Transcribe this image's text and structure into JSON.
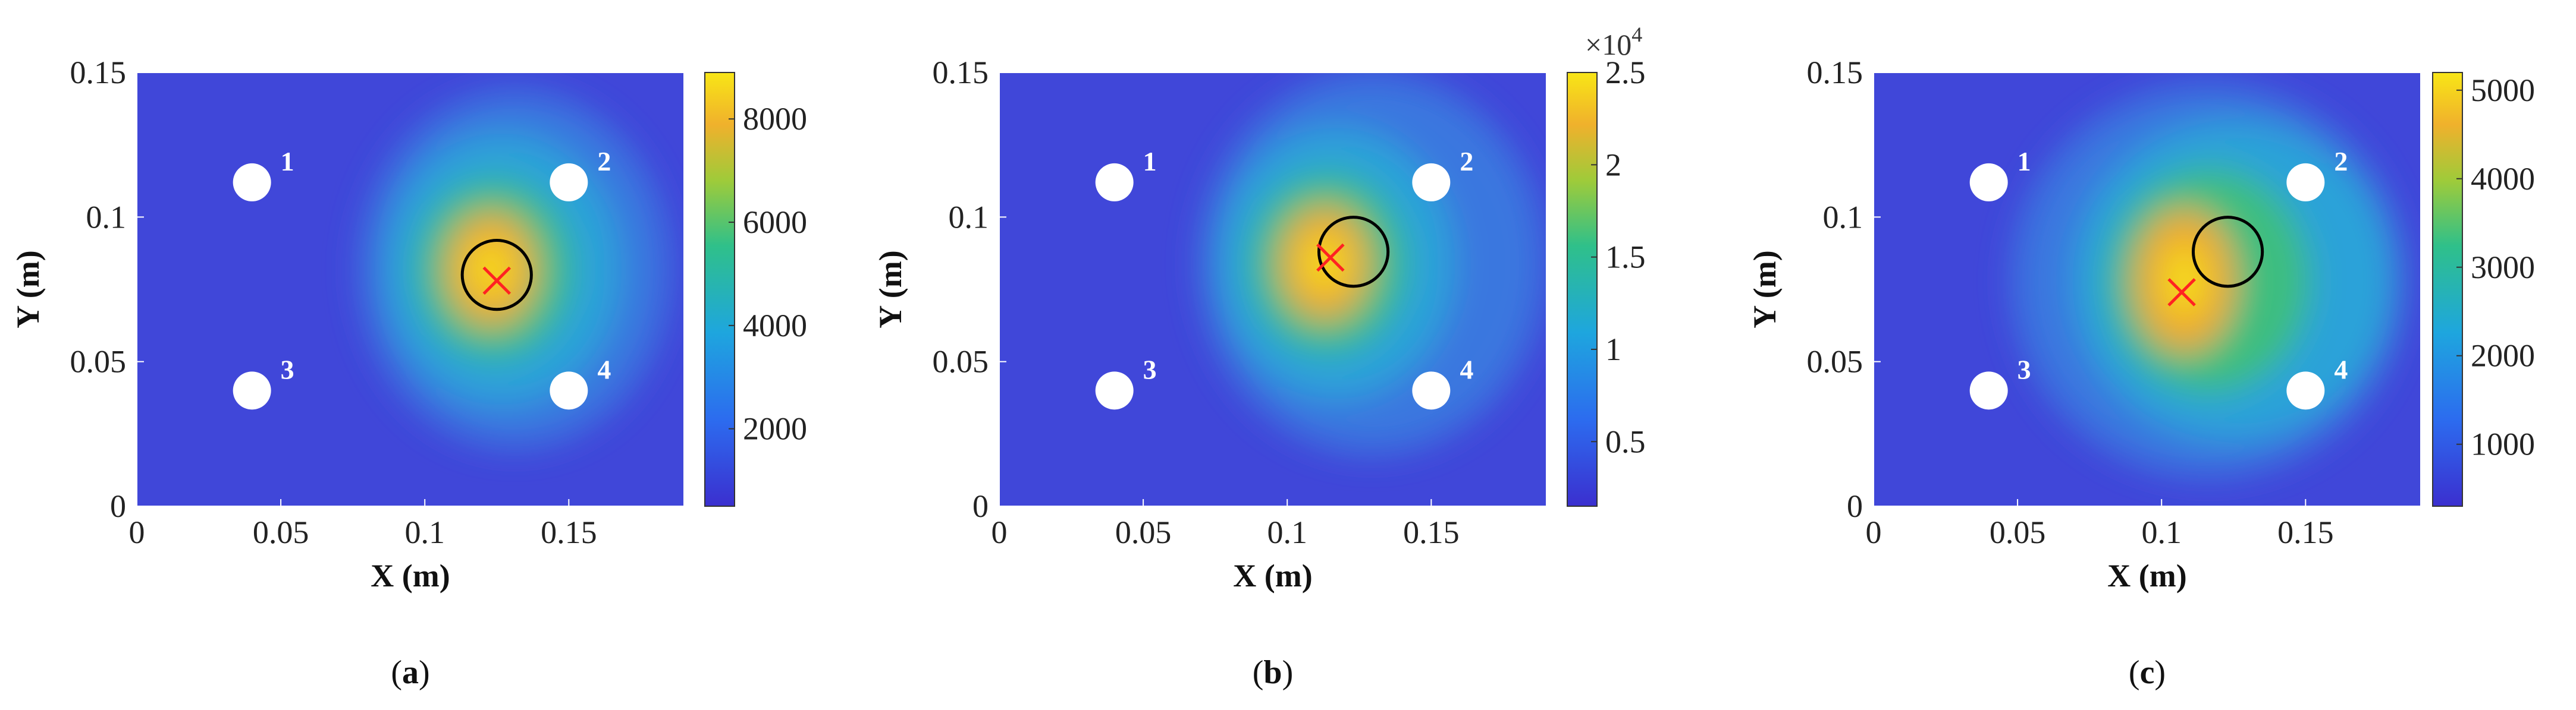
{
  "chart_data": [
    {
      "type": "heatmap",
      "caption": "(a)",
      "caption_letter": "a",
      "xlabel": "X (m)",
      "ylabel": "Y (m)",
      "xlim": [
        0,
        0.19
      ],
      "ylim": [
        0,
        0.15
      ],
      "xticks": [
        "0",
        "0.05",
        "0.1",
        "0.15"
      ],
      "xtick_values": [
        0,
        0.05,
        0.1,
        0.15
      ],
      "yticks": [
        "0",
        "0.05",
        "0.1",
        "0.15"
      ],
      "ytick_values": [
        0,
        0.05,
        0.1,
        0.15
      ],
      "colorbar": {
        "min": 500,
        "max": 8900,
        "ticks": [
          "2000",
          "4000",
          "6000",
          "8000"
        ],
        "tick_values": [
          2000,
          4000,
          6000,
          8000
        ],
        "exponent_label": ""
      },
      "sensors": [
        {
          "label": "1",
          "x": 0.04,
          "y": 0.112
        },
        {
          "label": "2",
          "x": 0.15,
          "y": 0.112
        },
        {
          "label": "3",
          "x": 0.04,
          "y": 0.04
        },
        {
          "label": "4",
          "x": 0.15,
          "y": 0.04
        }
      ],
      "true_source": {
        "x": 0.125,
        "y": 0.08,
        "radius": 0.012
      },
      "estimated_source": {
        "x": 0.125,
        "y": 0.078
      },
      "hotspot": {
        "x": 0.123,
        "y": 0.082,
        "peak": 8900
      }
    },
    {
      "type": "heatmap",
      "caption": "(b)",
      "caption_letter": "b",
      "xlabel": "X (m)",
      "ylabel": "Y (m)",
      "xlim": [
        0,
        0.19
      ],
      "ylim": [
        0,
        0.15
      ],
      "xticks": [
        "0",
        "0.05",
        "0.1",
        "0.15"
      ],
      "xtick_values": [
        0,
        0.05,
        0.1,
        0.15
      ],
      "yticks": [
        "0",
        "0.05",
        "0.1",
        "0.15"
      ],
      "ytick_values": [
        0,
        0.05,
        0.1,
        0.15
      ],
      "colorbar": {
        "min": 0.15,
        "max": 2.5,
        "ticks": [
          "0.5",
          "1",
          "1.5",
          "2",
          "2.5"
        ],
        "tick_values": [
          0.5,
          1,
          1.5,
          2,
          2.5
        ],
        "exponent_label": "×10",
        "exponent_power": "4"
      },
      "sensors": [
        {
          "label": "1",
          "x": 0.04,
          "y": 0.112
        },
        {
          "label": "2",
          "x": 0.15,
          "y": 0.112
        },
        {
          "label": "3",
          "x": 0.04,
          "y": 0.04
        },
        {
          "label": "4",
          "x": 0.15,
          "y": 0.04
        }
      ],
      "true_source": {
        "x": 0.123,
        "y": 0.088,
        "radius": 0.012
      },
      "estimated_source": {
        "x": 0.115,
        "y": 0.086
      },
      "hotspot": {
        "x": 0.113,
        "y": 0.084,
        "peak": 2.5
      }
    },
    {
      "type": "heatmap",
      "caption": "(c)",
      "caption_letter": "c",
      "xlabel": "X (m)",
      "ylabel": "Y (m)",
      "xlim": [
        0,
        0.19
      ],
      "ylim": [
        0,
        0.15
      ],
      "xticks": [
        "0",
        "0.05",
        "0.1",
        "0.15"
      ],
      "xtick_values": [
        0,
        0.05,
        0.1,
        0.15
      ],
      "yticks": [
        "0",
        "0.05",
        "0.1",
        "0.15"
      ],
      "ytick_values": [
        0,
        0.05,
        0.1,
        0.15
      ],
      "colorbar": {
        "min": 300,
        "max": 5200,
        "ticks": [
          "1000",
          "2000",
          "3000",
          "4000",
          "5000"
        ],
        "tick_values": [
          1000,
          2000,
          3000,
          4000,
          5000
        ],
        "exponent_label": ""
      },
      "sensors": [
        {
          "label": "1",
          "x": 0.04,
          "y": 0.112
        },
        {
          "label": "2",
          "x": 0.15,
          "y": 0.112
        },
        {
          "label": "3",
          "x": 0.04,
          "y": 0.04
        },
        {
          "label": "4",
          "x": 0.15,
          "y": 0.04
        }
      ],
      "true_source": {
        "x": 0.123,
        "y": 0.088,
        "radius": 0.012
      },
      "estimated_source": {
        "x": 0.107,
        "y": 0.074
      },
      "hotspot": {
        "x": 0.108,
        "y": 0.078,
        "peak": 5200
      }
    }
  ],
  "colors": {
    "low": "#3b3fd6",
    "mid": "#2aa8d8",
    "green": "#3fc07a",
    "orange": "#f0a82a",
    "high": "#f5e21a",
    "estimate_marker": "#ff2222",
    "true_circle": "#000000",
    "sensor": "#ffffff"
  }
}
